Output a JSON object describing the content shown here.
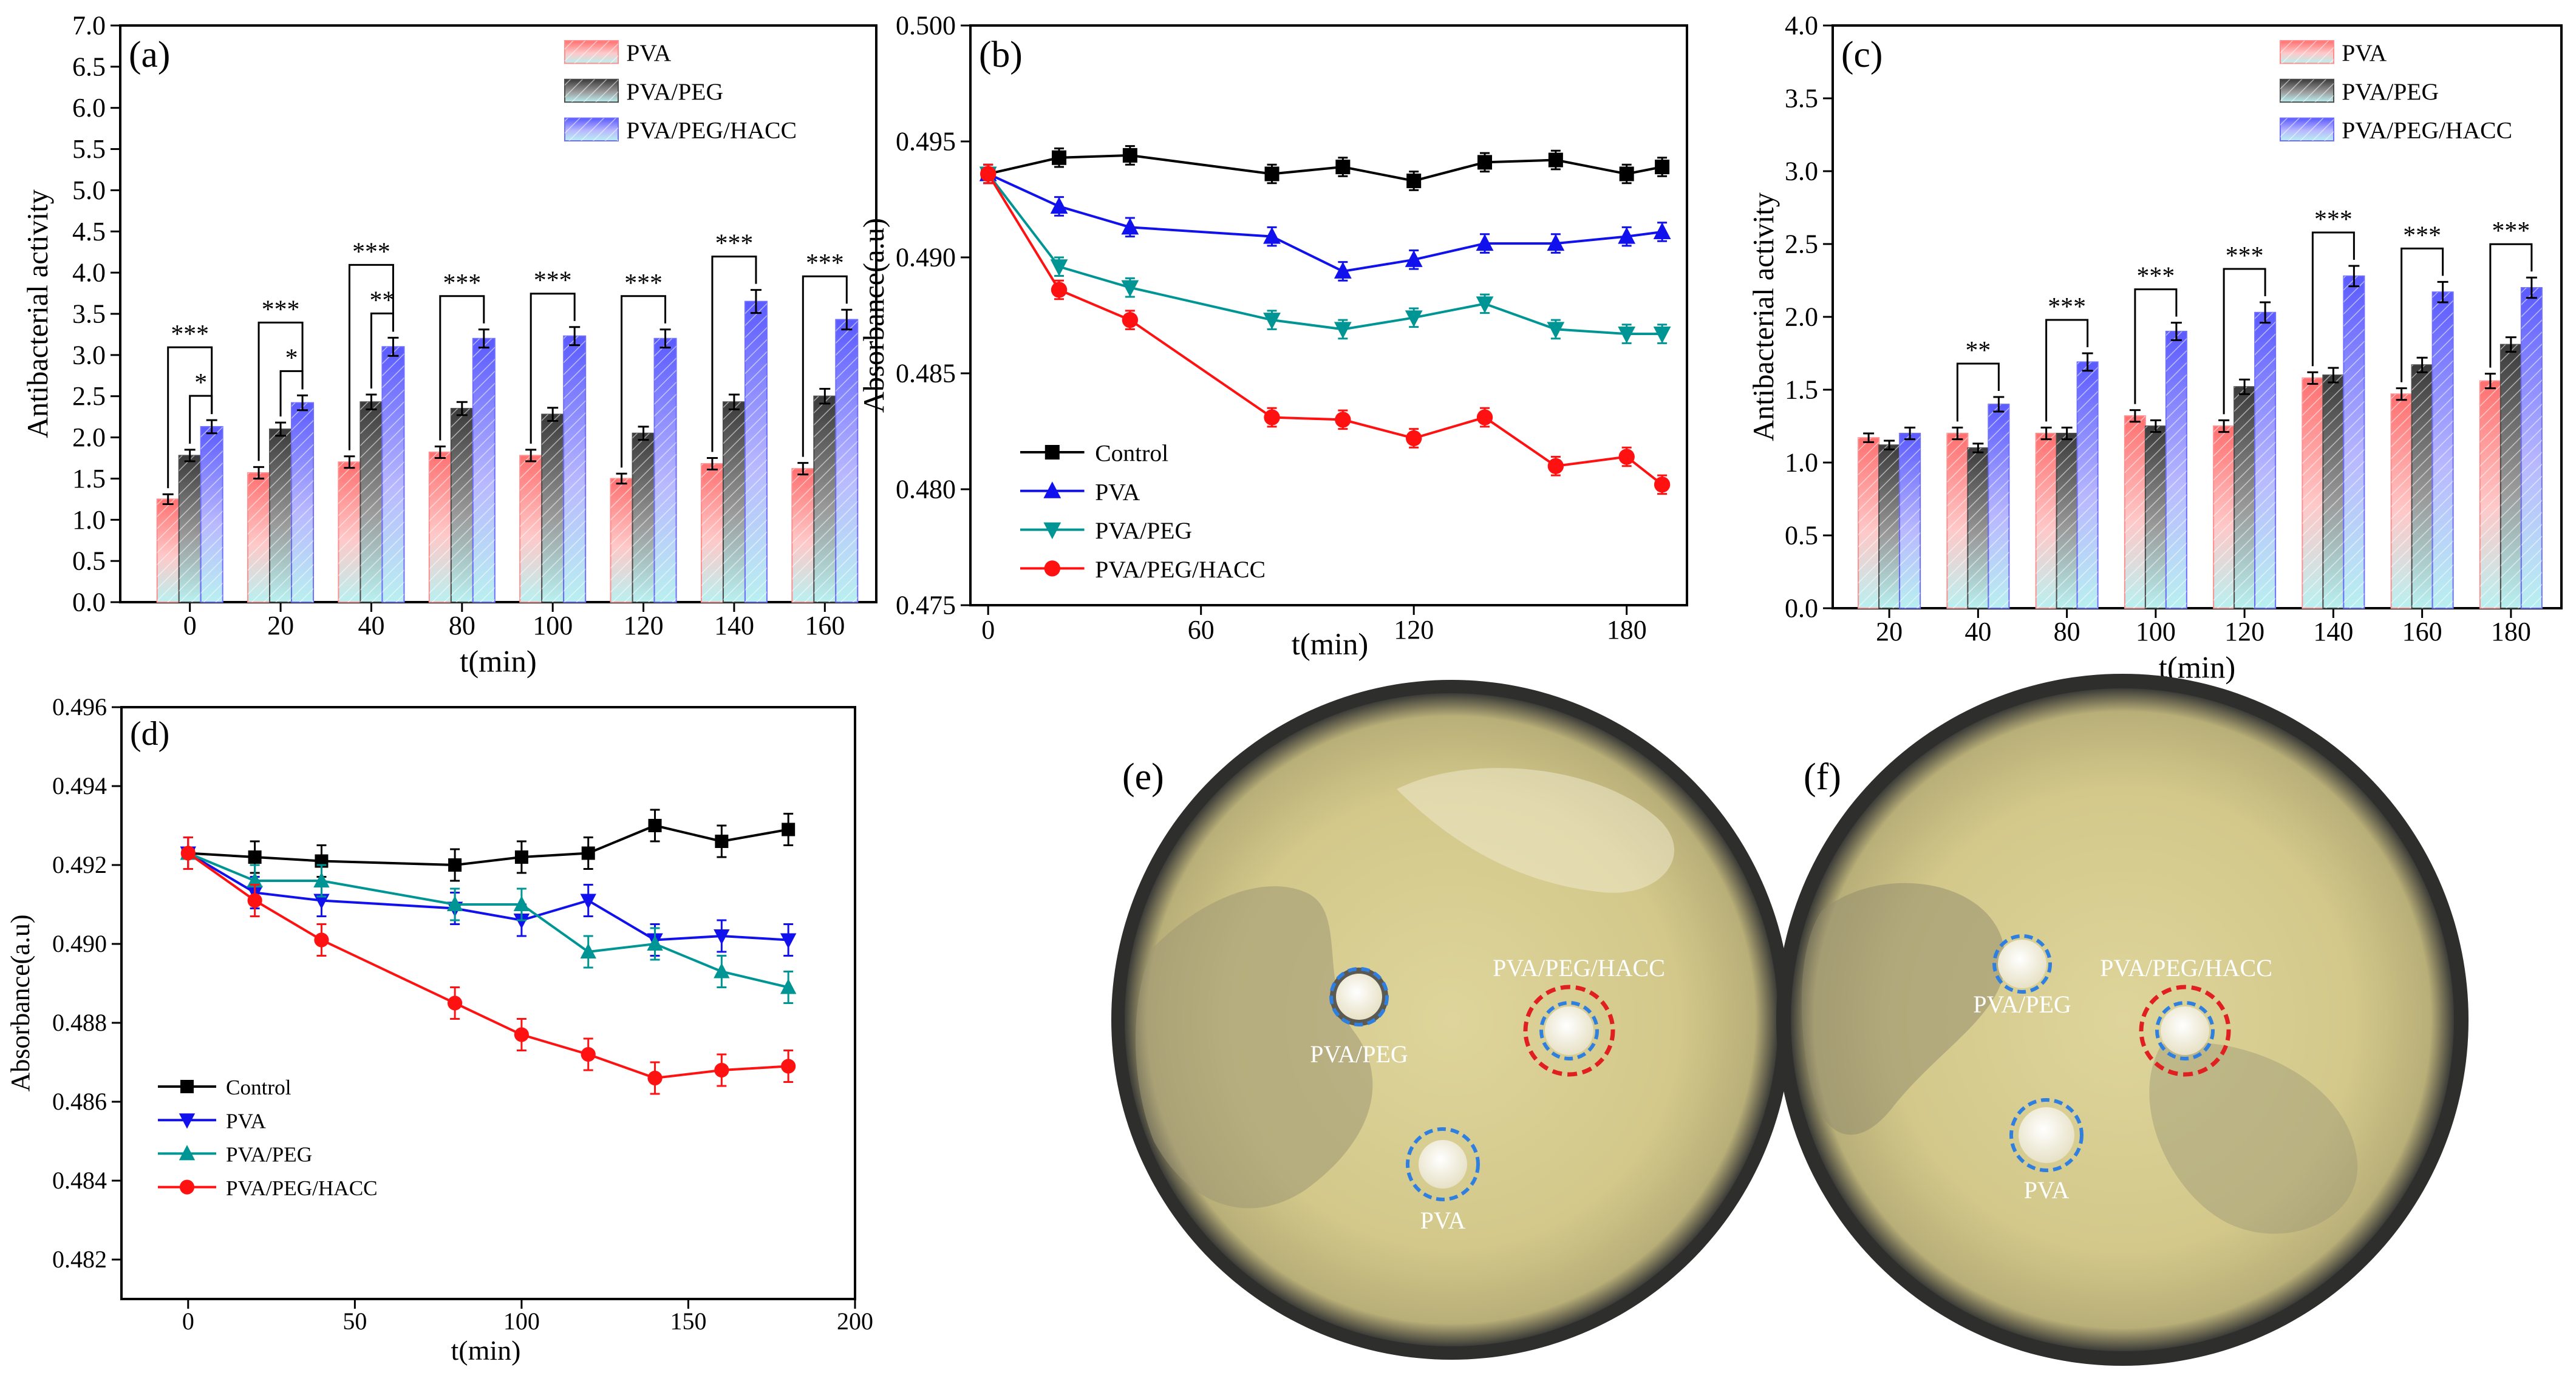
{
  "colors": {
    "pva_bar": "#ff8d8d",
    "pva_peg_bar": "#4a4a4a",
    "pva_peg_hacc_bar": "#6d6dff",
    "bar_bottom": "#9fe3e3",
    "control": "#000000",
    "pva_line": "#1111ee",
    "pva_peg_line": "#009595",
    "pva_peg_hacc_line": "#ff1111",
    "plate": "#c8bf86",
    "circle_blue": "#2f7fe0",
    "circle_red": "#e02020"
  },
  "chart_data": [
    {
      "panel": "(a)",
      "type": "bar",
      "xlabel": "t(min)",
      "ylabel": "Antibacterial activity",
      "ylim": [
        0,
        7.0
      ],
      "yticks": [
        "0.0",
        "0.5",
        "1.0",
        "1.5",
        "2.0",
        "2.5",
        "3.0",
        "3.5",
        "4.0",
        "4.5",
        "5.0",
        "5.5",
        "6.0",
        "6.5",
        "7.0"
      ],
      "categories": [
        "0",
        "20",
        "40",
        "80",
        "100",
        "120",
        "140",
        "160"
      ],
      "series": [
        {
          "name": "PVA",
          "values": [
            1.25,
            1.57,
            1.7,
            1.82,
            1.78,
            1.5,
            1.68,
            1.62
          ],
          "errors": [
            0.06,
            0.07,
            0.07,
            0.07,
            0.07,
            0.06,
            0.07,
            0.07
          ]
        },
        {
          "name": "PVA/PEG",
          "values": [
            1.78,
            2.1,
            2.43,
            2.35,
            2.28,
            2.05,
            2.43,
            2.5
          ],
          "errors": [
            0.07,
            0.08,
            0.09,
            0.08,
            0.08,
            0.08,
            0.09,
            0.09
          ]
        },
        {
          "name": "PVA/PEG/HACC",
          "values": [
            2.13,
            2.42,
            3.1,
            3.2,
            3.23,
            3.2,
            3.65,
            3.43
          ],
          "errors": [
            0.08,
            0.09,
            0.11,
            0.11,
            0.11,
            0.11,
            0.14,
            0.12
          ]
        }
      ],
      "legend": "top-right",
      "brackets": [
        {
          "category": "0",
          "outer": "***",
          "inner": "*"
        },
        {
          "category": "20",
          "outer": "***",
          "inner": "*"
        },
        {
          "category": "40",
          "outer": "***",
          "inner": "**"
        },
        {
          "category": "80",
          "outer": "***"
        },
        {
          "category": "100",
          "outer": "***"
        },
        {
          "category": "120",
          "outer": "***"
        },
        {
          "category": "140",
          "outer": "***"
        },
        {
          "category": "160",
          "outer": "***"
        }
      ]
    },
    {
      "panel": "(b)",
      "type": "line",
      "xlabel": "t(min)",
      "ylabel": "Absorbance(a.u)",
      "xlim": [
        -5,
        197
      ],
      "ylim": [
        0.475,
        0.5
      ],
      "xticks": [
        0,
        60,
        120,
        180
      ],
      "yticks": [
        "0.475",
        "0.480",
        "0.485",
        "0.490",
        "0.495",
        "0.500"
      ],
      "series": [
        {
          "name": "Control",
          "marker": "square",
          "x": [
            0,
            20,
            40,
            80,
            100,
            120,
            140,
            160,
            180,
            190
          ],
          "y": [
            0.4936,
            0.4943,
            0.4944,
            0.4936,
            0.4939,
            0.4933,
            0.4941,
            0.4942,
            0.4936,
            0.4939
          ]
        },
        {
          "name": "PVA",
          "marker": "triangle-up",
          "x": [
            0,
            20,
            40,
            80,
            100,
            120,
            140,
            160,
            180,
            190
          ],
          "y": [
            0.4936,
            0.4922,
            0.4913,
            0.4909,
            0.4894,
            0.4899,
            0.4906,
            0.4906,
            0.4909,
            0.4911
          ]
        },
        {
          "name": "PVA/PEG",
          "marker": "triangle-down",
          "x": [
            0,
            20,
            40,
            80,
            100,
            120,
            140,
            160,
            180,
            190
          ],
          "y": [
            0.4936,
            0.4896,
            0.4887,
            0.4873,
            0.4869,
            0.4874,
            0.488,
            0.4869,
            0.4867,
            0.4867
          ]
        },
        {
          "name": "PVA/PEG/HACC",
          "marker": "circle",
          "x": [
            0,
            20,
            40,
            80,
            100,
            120,
            140,
            160,
            180,
            190
          ],
          "y": [
            0.4936,
            0.4886,
            0.4873,
            0.4831,
            0.483,
            0.4822,
            0.4831,
            0.481,
            0.4814,
            0.4802
          ]
        }
      ],
      "legend": "bottom-left"
    },
    {
      "panel": "(c)",
      "type": "bar",
      "xlabel": "t(min)",
      "ylabel": "Antibacterial activity",
      "ylim": [
        0,
        4.0
      ],
      "yticks": [
        "0.0",
        "0.5",
        "1.0",
        "1.5",
        "2.0",
        "2.5",
        "3.0",
        "3.5",
        "4.0"
      ],
      "categories": [
        "20",
        "40",
        "80",
        "100",
        "120",
        "140",
        "160",
        "180"
      ],
      "series": [
        {
          "name": "PVA",
          "values": [
            1.17,
            1.2,
            1.2,
            1.32,
            1.25,
            1.58,
            1.47,
            1.56
          ],
          "errors": [
            0.03,
            0.04,
            0.04,
            0.04,
            0.04,
            0.04,
            0.04,
            0.05
          ]
        },
        {
          "name": "PVA/PEG",
          "values": [
            1.12,
            1.1,
            1.2,
            1.25,
            1.52,
            1.6,
            1.67,
            1.81
          ],
          "errors": [
            0.03,
            0.03,
            0.04,
            0.04,
            0.05,
            0.05,
            0.05,
            0.05
          ]
        },
        {
          "name": "PVA/PEG/HACC",
          "values": [
            1.2,
            1.4,
            1.69,
            1.9,
            2.03,
            2.28,
            2.17,
            2.2
          ],
          "errors": [
            0.04,
            0.05,
            0.06,
            0.06,
            0.07,
            0.07,
            0.07,
            0.07
          ]
        }
      ],
      "legend": "top-right",
      "brackets": [
        {
          "category": "40",
          "outer": "**"
        },
        {
          "category": "80",
          "outer": "***"
        },
        {
          "category": "100",
          "outer": "***"
        },
        {
          "category": "120",
          "outer": "***"
        },
        {
          "category": "140",
          "outer": "***"
        },
        {
          "category": "160",
          "outer": "***"
        },
        {
          "category": "180",
          "outer": "***"
        }
      ]
    },
    {
      "panel": "(d)",
      "type": "line",
      "xlabel": "t(min)",
      "ylabel": "Absorbance(a.u)",
      "xlim": [
        -20,
        200
      ],
      "ylim": [
        0.481,
        0.496
      ],
      "xticks": [
        0,
        50,
        100,
        150,
        200
      ],
      "yticks": [
        "0.482",
        "0.484",
        "0.486",
        "0.488",
        "0.490",
        "0.492",
        "0.494",
        "0.496"
      ],
      "series": [
        {
          "name": "Control",
          "marker": "square",
          "x": [
            0,
            20,
            40,
            80,
            100,
            120,
            140,
            160,
            180
          ],
          "y": [
            0.4923,
            0.4922,
            0.4921,
            0.492,
            0.4922,
            0.4923,
            0.493,
            0.4926,
            0.4929
          ]
        },
        {
          "name": "PVA",
          "marker": "triangle-down",
          "x": [
            0,
            20,
            40,
            80,
            100,
            120,
            140,
            160,
            180
          ],
          "y": [
            0.4923,
            0.4913,
            0.4911,
            0.4909,
            0.4906,
            0.4911,
            0.4901,
            0.4902,
            0.4901
          ]
        },
        {
          "name": "PVA/PEG",
          "marker": "triangle-up",
          "x": [
            0,
            20,
            40,
            80,
            100,
            120,
            140,
            160,
            180
          ],
          "y": [
            0.4923,
            0.4916,
            0.4916,
            0.491,
            0.491,
            0.4898,
            0.49,
            0.4893,
            0.4889
          ]
        },
        {
          "name": "PVA/PEG/HACC",
          "marker": "circle",
          "x": [
            0,
            20,
            40,
            80,
            100,
            120,
            140,
            160,
            180
          ],
          "y": [
            0.4923,
            0.4911,
            0.4901,
            0.4885,
            0.4877,
            0.4872,
            0.4866,
            0.4868,
            0.4869
          ]
        }
      ],
      "legend": "bottom-left"
    }
  ],
  "plates": [
    {
      "panel": "(e)",
      "labels": [
        "PVA/PEG",
        "PVA/PEG/HACC",
        "PVA"
      ]
    },
    {
      "panel": "(f)",
      "labels": [
        "PVA/PEG",
        "PVA/PEG/HACC",
        "PVA"
      ]
    }
  ]
}
